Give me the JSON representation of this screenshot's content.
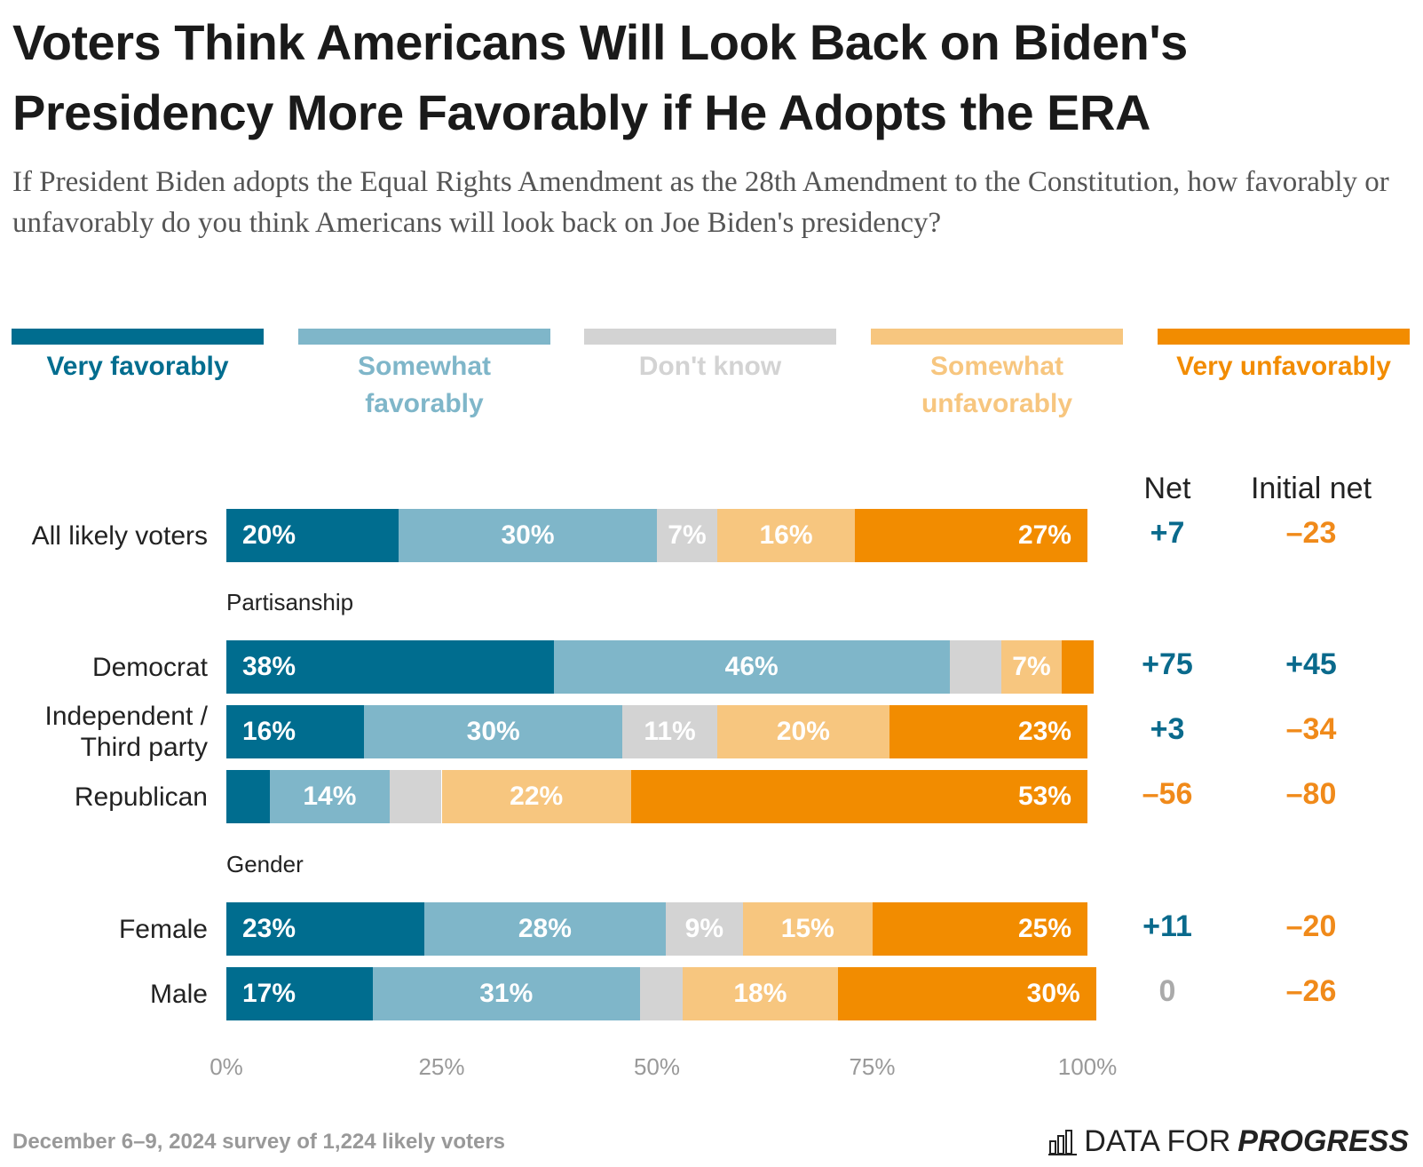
{
  "chart_data": {
    "type": "stacked_bar_horizontal",
    "title": "Voters Think Americans Will Look Back on Biden's Presidency More Favorably if He Adopts the ERA",
    "subtitle": "If President Biden adopts the Equal Rights Amendment as the 28th Amendment to the Constitution, how favorably or unfavorably do you think Americans will look back on Joe Biden's presidency?",
    "categories": [
      "All likely voters",
      "Democrat",
      "Independent / Third party",
      "Republican",
      "Female",
      "Male"
    ],
    "group_labels": [
      null,
      "Partisanship",
      null,
      null,
      "Gender",
      null
    ],
    "series": [
      {
        "name": "Very favorably",
        "color": "#006d8f",
        "values": [
          20,
          38,
          16,
          5,
          23,
          17
        ],
        "value_labels": [
          "20%",
          "38%",
          "16%",
          null,
          "23%",
          "17%"
        ]
      },
      {
        "name": "Somewhat favorably",
        "color": "#7fb6c9",
        "values": [
          30,
          46,
          30,
          14,
          28,
          31
        ],
        "value_labels": [
          "30%",
          "46%",
          "30%",
          "14%",
          "28%",
          "31%"
        ]
      },
      {
        "name": "Don't know",
        "color": "#d3d3d3",
        "values": [
          7,
          6,
          11,
          6,
          9,
          5
        ],
        "value_labels": [
          "7%",
          null,
          "11%",
          null,
          "9%",
          null
        ]
      },
      {
        "name": "Somewhat unfavorably",
        "color": "#f7c67f",
        "values": [
          16,
          7,
          20,
          22,
          15,
          18
        ],
        "value_labels": [
          "16%",
          "7%",
          "20%",
          "22%",
          "15%",
          "18%"
        ]
      },
      {
        "name": "Very unfavorably",
        "color": "#f28c00",
        "values": [
          27,
          2,
          23,
          53,
          25,
          30
        ],
        "value_labels": [
          "27%",
          null,
          "23%",
          "53%",
          "25%",
          "30%"
        ]
      }
    ],
    "xlim": [
      0,
      100
    ],
    "xticks": [
      {
        "value": 0,
        "label": "0%"
      },
      {
        "value": 25,
        "label": "25%"
      },
      {
        "value": 50,
        "label": "50%"
      },
      {
        "value": 75,
        "label": "75%"
      },
      {
        "value": 100,
        "label": "100%"
      }
    ],
    "grid": false,
    "net_columns": [
      {
        "title": "Net",
        "values": [
          7,
          75,
          3,
          -56,
          11,
          0
        ],
        "value_labels": [
          "+7",
          "+75",
          "+3",
          "–56",
          "+11",
          "0"
        ]
      },
      {
        "title": "Initial net",
        "values": [
          -23,
          45,
          -34,
          -80,
          -20,
          -26
        ],
        "value_labels": [
          "–23",
          "+45",
          "–34",
          "–80",
          "–20",
          "–26"
        ]
      }
    ],
    "net_colors": {
      "positive": "#0a6a8c",
      "negative": "#f08a1a",
      "zero": "#aaaaaa"
    },
    "source": "December 6–9, 2024 survey of 1,224 likely voters",
    "logo": {
      "regular": "DATA FOR",
      "bold": "PROGRESS"
    }
  }
}
